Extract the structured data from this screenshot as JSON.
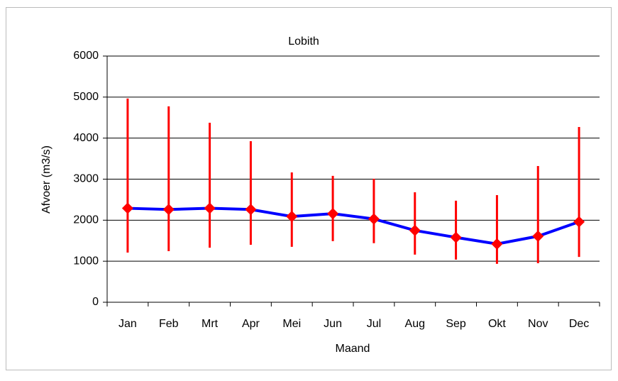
{
  "chart_data": {
    "type": "line",
    "title": "Lobith",
    "x_label": "Maand",
    "y_label": "Afvoer (m3/s)",
    "categories": [
      "Jan",
      "Feb",
      "Mrt",
      "Apr",
      "Mei",
      "Jun",
      "Jul",
      "Aug",
      "Sep",
      "Okt",
      "Nov",
      "Dec"
    ],
    "values": [
      2290,
      2260,
      2290,
      2260,
      2090,
      2160,
      2030,
      1750,
      1580,
      1420,
      1610,
      1960
    ],
    "low": [
      1210,
      1245,
      1330,
      1400,
      1350,
      1490,
      1440,
      1160,
      1040,
      935,
      950,
      1105
    ],
    "high": [
      4965,
      4775,
      4375,
      3925,
      3165,
      3080,
      3010,
      2680,
      2475,
      2610,
      3320,
      4270
    ],
    "color": "#0000ff",
    "marker_color": "#ff0000",
    "ylim": [
      0,
      6000
    ],
    "yticks": [
      0,
      1000,
      2000,
      3000,
      4000,
      5000,
      6000
    ],
    "grid": true
  }
}
